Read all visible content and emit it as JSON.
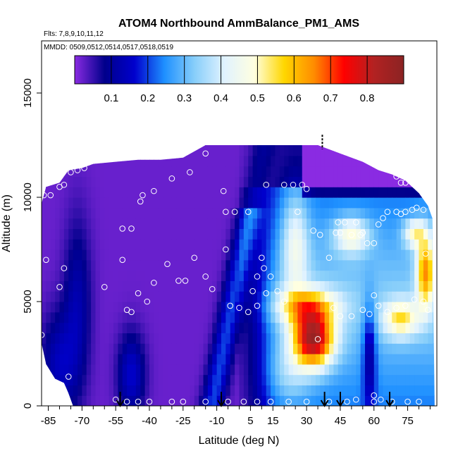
{
  "chart_data": {
    "type": "heatmap",
    "title": "ATOM4 Northbound AmmBalance_PM1_AMS",
    "flights_label": "Flts: 7,8,9,10,11,12",
    "mmdd_label": "MMDD: 0509,0512,0514,0517,0518,0519",
    "xlabel": "Latitude (deg N)",
    "ylabel": "Altitude (m)",
    "xlim": [
      -88,
      88
    ],
    "ylim": [
      0,
      17500
    ],
    "x_ticks": [
      -85,
      -70,
      -55,
      -40,
      -25,
      -10,
      5,
      15,
      30,
      45,
      60,
      75
    ],
    "y_ticks": [
      0,
      5000,
      10000,
      15000
    ],
    "colorbar": {
      "range": [
        0,
        0.9
      ],
      "ticks": [
        0.1,
        0.2,
        0.3,
        0.4,
        0.5,
        0.6,
        0.7,
        0.8
      ],
      "colors": [
        "#8a2be2",
        "#00008b",
        "#0000cd",
        "#1e90ff",
        "#87cefa",
        "#e0f2ff",
        "#ffffe0",
        "#ffd700",
        "#ff8c00",
        "#ff0000",
        "#b22222",
        "#8b2323"
      ]
    },
    "arrows_latitude": [
      -53,
      -8,
      38,
      45,
      67
    ],
    "tick_mark_latitude": [
      37
    ],
    "sample_points": [
      {
        "x": -87,
        "y": 10100
      },
      {
        "x": -84,
        "y": 10100
      },
      {
        "x": -80,
        "y": 10500
      },
      {
        "x": -78,
        "y": 10600
      },
      {
        "x": -75,
        "y": 11200
      },
      {
        "x": -72,
        "y": 11300
      },
      {
        "x": -69,
        "y": 11400
      },
      {
        "x": -86,
        "y": 7000
      },
      {
        "x": -78,
        "y": 6600
      },
      {
        "x": -80,
        "y": 5700
      },
      {
        "x": -88,
        "y": 3400
      },
      {
        "x": -76,
        "y": 1400
      },
      {
        "x": -60,
        "y": 5700
      },
      {
        "x": -52,
        "y": 7000
      },
      {
        "x": -52,
        "y": 8500
      },
      {
        "x": -48,
        "y": 8500
      },
      {
        "x": -50,
        "y": 4600
      },
      {
        "x": -48,
        "y": 4500
      },
      {
        "x": -45,
        "y": 5400
      },
      {
        "x": -41,
        "y": 5000
      },
      {
        "x": -38,
        "y": 5900
      },
      {
        "x": -32,
        "y": 6800
      },
      {
        "x": -27,
        "y": 6000
      },
      {
        "x": -24,
        "y": 6000
      },
      {
        "x": -20,
        "y": 7100
      },
      {
        "x": -15,
        "y": 6200
      },
      {
        "x": -12,
        "y": 5600
      },
      {
        "x": -44,
        "y": 9800
      },
      {
        "x": -43,
        "y": 10100
      },
      {
        "x": -38,
        "y": 10300
      },
      {
        "x": -30,
        "y": 10900
      },
      {
        "x": -22,
        "y": 11200
      },
      {
        "x": -15,
        "y": 12100
      },
      {
        "x": -7,
        "y": 10300
      },
      {
        "x": -6,
        "y": 9300
      },
      {
        "x": -2,
        "y": 9300
      },
      {
        "x": 4,
        "y": 9300
      },
      {
        "x": -6,
        "y": 7500
      },
      {
        "x": -4,
        "y": 4800
      },
      {
        "x": 0,
        "y": 4700
      },
      {
        "x": 4,
        "y": 4500
      },
      {
        "x": 6,
        "y": 5500
      },
      {
        "x": 8,
        "y": 4800
      },
      {
        "x": 8,
        "y": 6200
      },
      {
        "x": 10,
        "y": 7100
      },
      {
        "x": 11,
        "y": 6600
      },
      {
        "x": 12,
        "y": 5400
      },
      {
        "x": 14,
        "y": 6200
      },
      {
        "x": 17,
        "y": 5500
      },
      {
        "x": 20,
        "y": 5000
      },
      {
        "x": 20,
        "y": 10600
      },
      {
        "x": 24,
        "y": 10600
      },
      {
        "x": 28,
        "y": 10600
      },
      {
        "x": 30,
        "y": 10400
      },
      {
        "x": 26,
        "y": 9300
      },
      {
        "x": 33,
        "y": 8400
      },
      {
        "x": 36,
        "y": 8200
      },
      {
        "x": 35,
        "y": 3200
      },
      {
        "x": 40,
        "y": 7100
      },
      {
        "x": 42,
        "y": 4700
      },
      {
        "x": 44,
        "y": 8800
      },
      {
        "x": 47,
        "y": 8800
      },
      {
        "x": 52,
        "y": 8800
      },
      {
        "x": 43,
        "y": 8300
      },
      {
        "x": 45,
        "y": 8300
      },
      {
        "x": 50,
        "y": 8200
      },
      {
        "x": 55,
        "y": 8300
      },
      {
        "x": 54,
        "y": 8200
      },
      {
        "x": 57,
        "y": 7800
      },
      {
        "x": 60,
        "y": 7800
      },
      {
        "x": 62,
        "y": 8700
      },
      {
        "x": 64,
        "y": 9000
      },
      {
        "x": 66,
        "y": 9300
      },
      {
        "x": 70,
        "y": 9300
      },
      {
        "x": 72,
        "y": 9200
      },
      {
        "x": 74,
        "y": 9300
      },
      {
        "x": 77,
        "y": 9400
      },
      {
        "x": 79,
        "y": 9500
      },
      {
        "x": 82,
        "y": 9400
      },
      {
        "x": 83,
        "y": 7300
      },
      {
        "x": 60,
        "y": 5300
      },
      {
        "x": 62,
        "y": 4800
      },
      {
        "x": 66,
        "y": 4500
      },
      {
        "x": 70,
        "y": 4700
      },
      {
        "x": 74,
        "y": 4800
      },
      {
        "x": 78,
        "y": 5100
      },
      {
        "x": 82,
        "y": 5000
      },
      {
        "x": 84,
        "y": 4600
      },
      {
        "x": 45,
        "y": 4300
      },
      {
        "x": 50,
        "y": 4300
      },
      {
        "x": 55,
        "y": 4600
      },
      {
        "x": 58,
        "y": 4400
      },
      {
        "x": 70,
        "y": 11000
      },
      {
        "x": 72,
        "y": 10700
      },
      {
        "x": 74,
        "y": 10700
      },
      {
        "x": 75,
        "y": 11100
      },
      {
        "x": 12,
        "y": 10600
      },
      {
        "x": -55,
        "y": 300
      },
      {
        "x": -50,
        "y": 200
      },
      {
        "x": -45,
        "y": 200
      },
      {
        "x": -40,
        "y": 200
      },
      {
        "x": -30,
        "y": 200
      },
      {
        "x": -25,
        "y": 200
      },
      {
        "x": -15,
        "y": 200
      },
      {
        "x": -5,
        "y": 200
      },
      {
        "x": 2,
        "y": 200
      },
      {
        "x": 8,
        "y": 200
      },
      {
        "x": 14,
        "y": 200
      },
      {
        "x": 22,
        "y": 200
      },
      {
        "x": 30,
        "y": 200
      },
      {
        "x": 40,
        "y": 200
      },
      {
        "x": 48,
        "y": 200
      },
      {
        "x": 52,
        "y": 300
      },
      {
        "x": 60,
        "y": 200
      },
      {
        "x": 63,
        "y": 300
      },
      {
        "x": 68,
        "y": 200
      },
      {
        "x": 75,
        "y": 200
      },
      {
        "x": 80,
        "y": 200
      },
      {
        "x": 60,
        "y": 500
      }
    ]
  }
}
